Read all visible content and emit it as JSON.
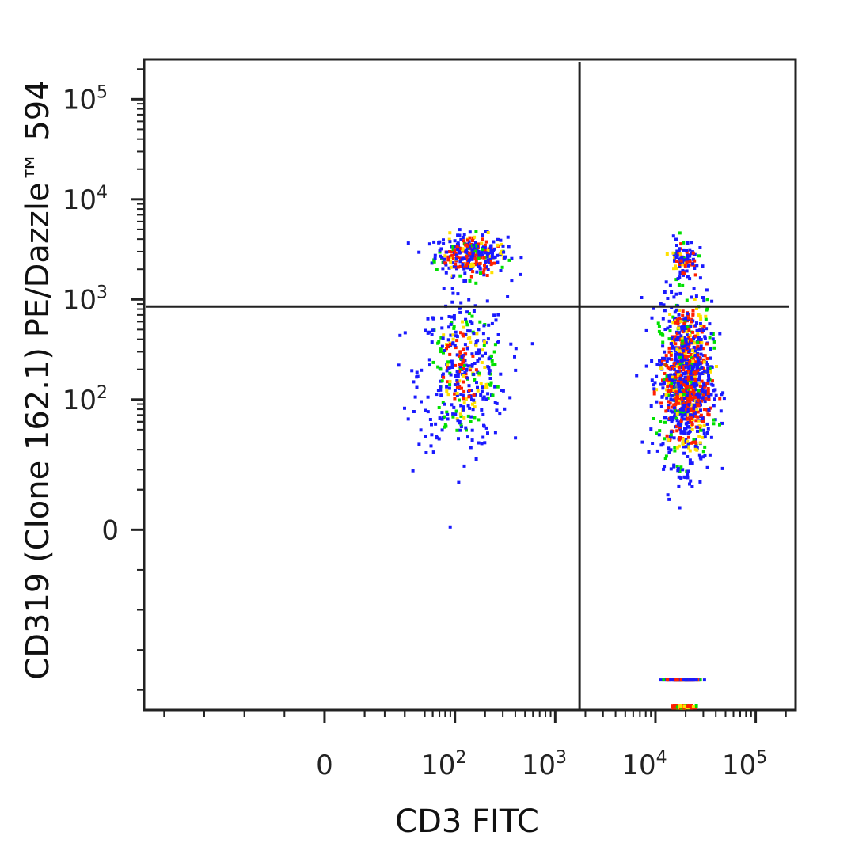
{
  "chart_data": {
    "type": "scatter",
    "xlabel": "CD3 FITC",
    "ylabel": "CD319 (Clone 162.1) PE/Dazzle™ 594",
    "x_scale": "biexponential",
    "y_scale": "biexponential",
    "xlim": [
      -90,
      250000
    ],
    "ylim": [
      -90,
      250000
    ],
    "x_ticks": [
      {
        "value": 0,
        "base": "0",
        "exp": ""
      },
      {
        "value": 100,
        "base": "10",
        "exp": "2"
      },
      {
        "value": 1000,
        "base": "10",
        "exp": "3"
      },
      {
        "value": 10000,
        "base": "10",
        "exp": "4"
      },
      {
        "value": 100000,
        "base": "10",
        "exp": "5"
      }
    ],
    "y_ticks": [
      {
        "value": 0,
        "base": "0",
        "exp": ""
      },
      {
        "value": 100,
        "base": "10",
        "exp": "2"
      },
      {
        "value": 1000,
        "base": "10",
        "exp": "3"
      },
      {
        "value": 10000,
        "base": "10",
        "exp": "4"
      },
      {
        "value": 100000,
        "base": "10",
        "exp": "5"
      }
    ],
    "quadrant_gate": {
      "x": 1750,
      "y": 850
    },
    "density_colors": [
      "#1a1aff",
      "#00e000",
      "#ffe000",
      "#ff2000"
    ],
    "populations": [
      {
        "center": [
          145,
          2800
        ],
        "spread": [
          0.18,
          0.1
        ],
        "count": 320
      },
      {
        "center": [
          120,
          180
        ],
        "spread": [
          0.22,
          0.38
        ],
        "count": 420
      },
      {
        "center": [
          20000,
          150
        ],
        "spread": [
          0.13,
          0.4
        ],
        "count": 1100
      },
      {
        "center": [
          19000,
          2600
        ],
        "spread": [
          0.07,
          0.1
        ],
        "count": 90
      },
      {
        "center": [
          19000,
          -75
        ],
        "spread": [
          0.08,
          0.0
        ],
        "count": 140
      }
    ],
    "grid": false,
    "legend": "none"
  }
}
